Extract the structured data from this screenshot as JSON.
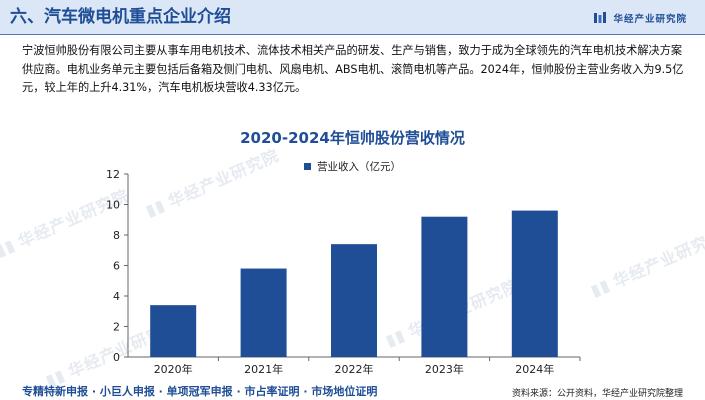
{
  "header": {
    "title": "六、汽车微电机重点企业介绍",
    "brand": "华经产业研究院"
  },
  "paragraph": "宁波恒帅股份有限公司主要从事车用电机技术、流体技术相关产品的研发、生产与销售，致力于成为全球领先的汽车电机技术解决方案供应商。电机业务单元主要包括后备箱及侧门电机、风扇电机、ABS电机、滚筒电机等产品。2024年，恒帅股份主营业务收入为9.5亿元，较上年的上升4.31%，汽车电机板块营收4.33亿元。",
  "watermark_text": "华经产业研究院",
  "chart_data": {
    "type": "bar",
    "title": "2020-2024年恒帅股份营收情况",
    "categories": [
      "2020年",
      "2021年",
      "2022年",
      "2023年",
      "2024年"
    ],
    "series": [
      {
        "name": "营业收入（亿元）",
        "values": [
          3.4,
          5.8,
          7.4,
          9.2,
          9.6
        ],
        "color": "#1f4e96"
      }
    ],
    "ylim": [
      0,
      12
    ],
    "yticks": [
      0,
      2,
      4,
      6,
      8,
      10,
      12
    ],
    "ytick_labels": [
      "0",
      "2",
      "4",
      "6",
      "8",
      "10",
      "12"
    ],
    "legend_position": "top-center",
    "grid": false
  },
  "footer": {
    "left": "专精特新申报 · 小巨人申报 · 单项冠军申报 · 市占率证明 · 市场地位证明",
    "right": "资料来源：公开资料，华经产业研究院整理"
  }
}
